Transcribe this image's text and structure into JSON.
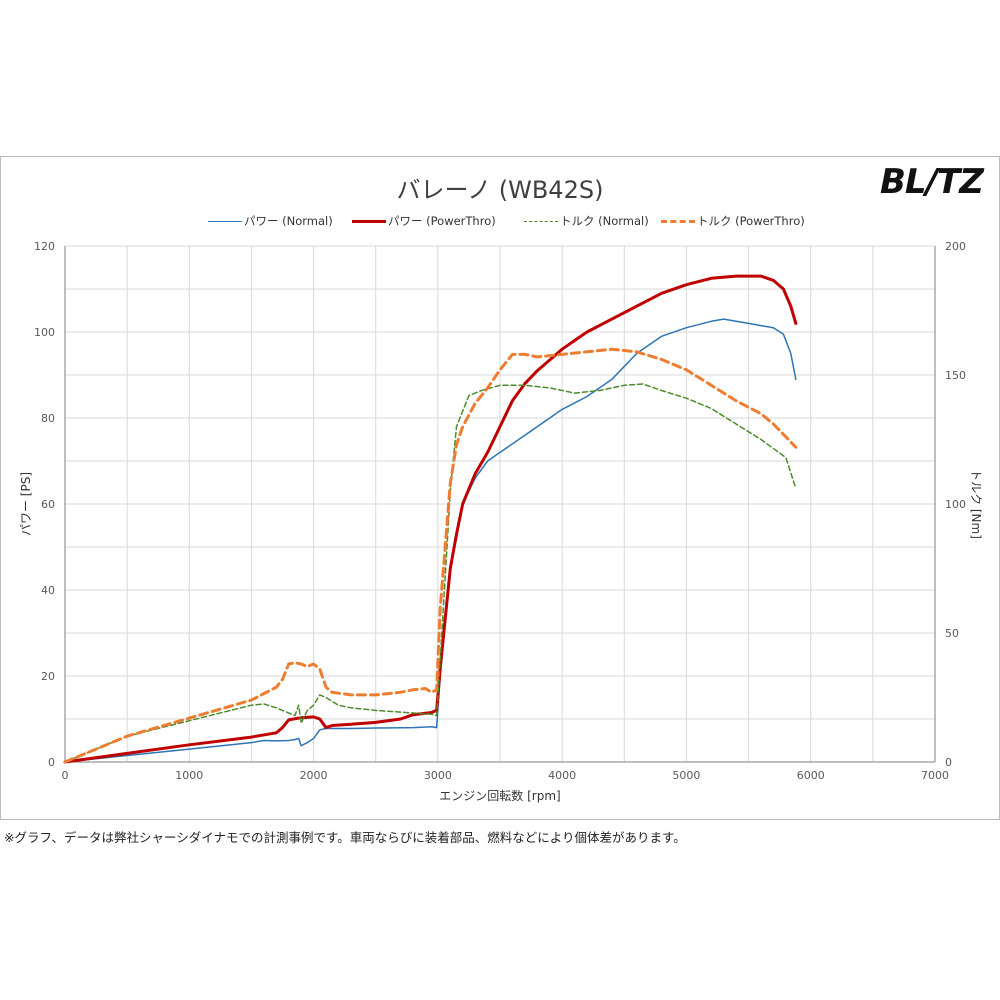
{
  "title": "バレーノ (WB42S)",
  "logo_text": "BL/TZ",
  "footnote": "※グラフ、データは弊社シャーシダイナモでの計測事例です。車両ならびに装着部品、燃料などにより個体差があります。",
  "chart_data": {
    "type": "line",
    "title": "バレーノ (WB42S)",
    "xlabel": "エンジン回転数 [rpm]",
    "ylabel": "パワー [PS]",
    "y2label": "トルク [Nm]",
    "xlim": [
      0,
      7000
    ],
    "ylim": [
      0,
      120
    ],
    "y2lim": [
      0,
      200
    ],
    "x_ticks": [
      "0",
      "1000",
      "2000",
      "3000",
      "4000",
      "5000",
      "6000",
      "7000"
    ],
    "y_ticks": [
      "0",
      "20",
      "40",
      "60",
      "80",
      "100",
      "120"
    ],
    "y2_ticks": [
      "0",
      "50",
      "100",
      "150",
      "200"
    ],
    "grid": true,
    "legend_position": "top",
    "series": [
      {
        "name": "パワー (Normal)",
        "axis": "left",
        "color": "#2e75b6",
        "style": "solid",
        "x": [
          0,
          500,
          1000,
          1500,
          1600,
          1700,
          1800,
          1850,
          1880,
          1900,
          1950,
          2000,
          2050,
          2100,
          2300,
          2500,
          2800,
          2950,
          2990,
          3020,
          3100,
          3150,
          3200,
          3300,
          3400,
          3500,
          3700,
          4000,
          4200,
          4400,
          4600,
          4800,
          5000,
          5200,
          5300,
          5400,
          5500,
          5600,
          5700,
          5780,
          5840,
          5880
        ],
        "values": [
          0,
          1.5,
          3.0,
          4.5,
          5.0,
          4.9,
          5.0,
          5.2,
          5.5,
          3.8,
          4.5,
          5.5,
          7.5,
          7.8,
          7.8,
          7.9,
          8.0,
          8.2,
          8.0,
          20,
          45,
          52,
          60,
          66,
          70,
          72,
          76,
          82,
          85,
          89,
          95,
          99,
          101,
          102.5,
          103,
          102.5,
          102,
          101.5,
          101,
          99.5,
          95,
          89
        ]
      },
      {
        "name": "パワー (PowerThro)",
        "axis": "left",
        "color": "#c00000",
        "style": "solid-bold",
        "x": [
          0,
          500,
          1000,
          1500,
          1700,
          1750,
          1800,
          1900,
          2000,
          2050,
          2100,
          2150,
          2300,
          2500,
          2700,
          2800,
          2950,
          2990,
          3020,
          3100,
          3150,
          3200,
          3300,
          3400,
          3500,
          3600,
          3700,
          3800,
          4000,
          4200,
          4400,
          4600,
          4800,
          5000,
          5200,
          5400,
          5600,
          5700,
          5780,
          5840,
          5880
        ],
        "values": [
          0,
          2,
          4,
          5.8,
          6.8,
          8.0,
          9.8,
          10.3,
          10.5,
          10.0,
          8.0,
          8.5,
          8.8,
          9.2,
          10,
          11,
          11.5,
          12,
          22,
          45,
          53,
          60,
          67,
          72,
          78,
          84,
          88,
          91,
          96,
          100,
          103,
          106,
          109,
          111,
          112.5,
          113,
          113,
          112,
          110,
          106,
          102
        ]
      },
      {
        "name": "トルク (Normal)",
        "axis": "right",
        "color": "#4d8c2a",
        "style": "dashed",
        "x": [
          0,
          500,
          1000,
          1500,
          1600,
          1700,
          1800,
          1850,
          1880,
          1900,
          1950,
          2000,
          2050,
          2100,
          2200,
          2300,
          2500,
          2800,
          2950,
          2990,
          3020,
          3100,
          3150,
          3250,
          3350,
          3500,
          3700,
          3900,
          4100,
          4300,
          4500,
          4650,
          4800,
          5000,
          5200,
          5400,
          5600,
          5800,
          5880
        ],
        "values": [
          0,
          10,
          16,
          22,
          22.5,
          21,
          19,
          18,
          22,
          15,
          20,
          22,
          26,
          25,
          22,
          21,
          20,
          19,
          18.5,
          18,
          40,
          105,
          130,
          142,
          144,
          146,
          146,
          145,
          143,
          144,
          146,
          146.5,
          144,
          141,
          137,
          131,
          125,
          118,
          106
        ]
      },
      {
        "name": "トルク (PowerThro)",
        "axis": "right",
        "color": "#ed7d31",
        "style": "dashed-bold",
        "x": [
          0,
          500,
          1000,
          1500,
          1700,
          1750,
          1800,
          1850,
          1900,
          1950,
          2000,
          2050,
          2100,
          2150,
          2300,
          2500,
          2700,
          2800,
          2900,
          2950,
          2990,
          3020,
          3100,
          3150,
          3200,
          3300,
          3400,
          3500,
          3600,
          3700,
          3800,
          4000,
          4200,
          4400,
          4600,
          4800,
          5000,
          5200,
          5400,
          5600,
          5700,
          5800,
          5880
        ],
        "values": [
          0,
          10,
          17,
          24,
          29,
          32,
          38,
          38.5,
          38,
          37,
          38,
          36,
          29,
          27,
          26,
          26,
          27,
          28,
          28.5,
          27,
          28,
          60,
          108,
          123,
          130,
          139,
          145,
          152,
          158,
          158,
          157,
          158,
          159,
          160,
          159,
          156,
          152,
          146,
          140,
          135,
          131,
          126,
          122
        ]
      }
    ]
  }
}
